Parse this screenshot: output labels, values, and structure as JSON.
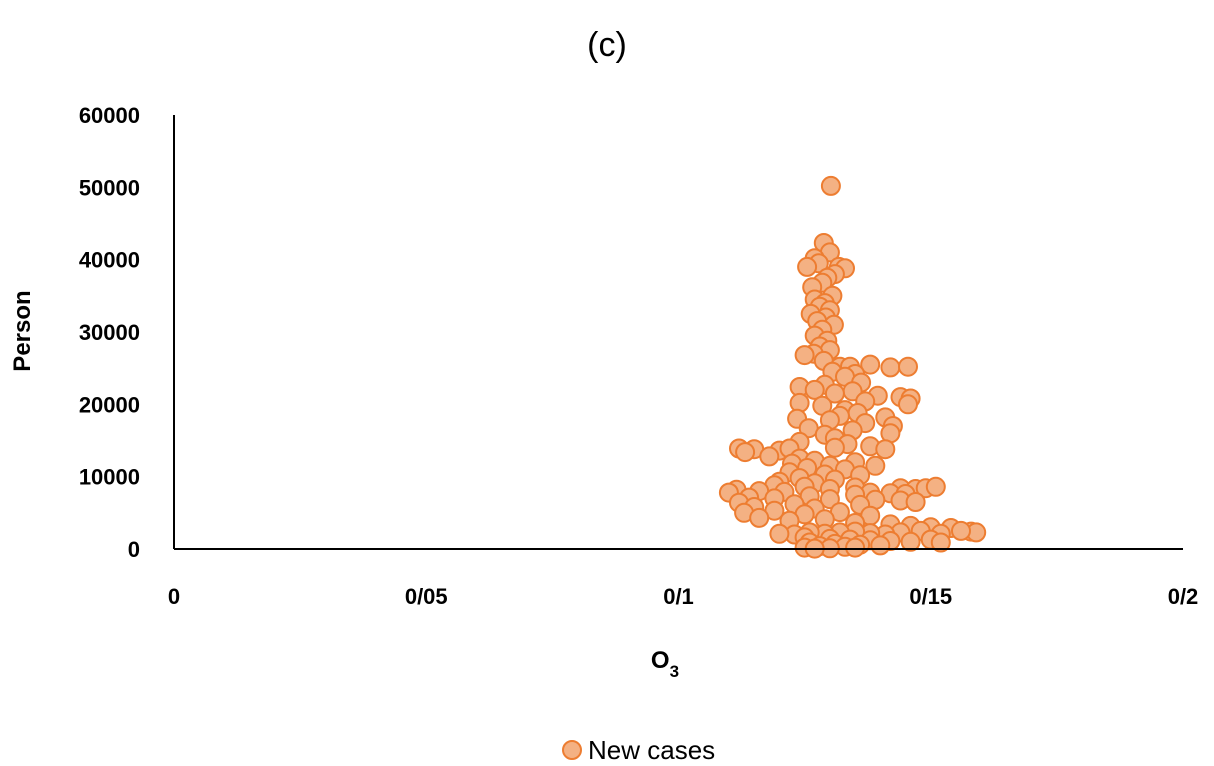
{
  "chart_data": {
    "type": "scatter",
    "title": "(c)",
    "xlabel": "O",
    "xlabel_sub": "3",
    "ylabel": "Person",
    "xlim": [
      0,
      0.2
    ],
    "ylim": [
      0,
      60000
    ],
    "x_ticks": [
      {
        "value": 0,
        "label": "0"
      },
      {
        "value": 0.05,
        "label": "0/05"
      },
      {
        "value": 0.1,
        "label": "0/1"
      },
      {
        "value": 0.15,
        "label": "0/15"
      },
      {
        "value": 0.2,
        "label": "0/2"
      }
    ],
    "y_ticks": [
      {
        "value": 0,
        "label": "0"
      },
      {
        "value": 10000,
        "label": "10000"
      },
      {
        "value": 20000,
        "label": "20000"
      },
      {
        "value": 30000,
        "label": "30000"
      },
      {
        "value": 40000,
        "label": "40000"
      },
      {
        "value": 50000,
        "label": "50000"
      },
      {
        "value": 60000,
        "label": "60000"
      }
    ],
    "grid": false,
    "legend_position": "bottom",
    "series": [
      {
        "name": "New cases",
        "marker_fill": "#F4B183",
        "marker_stroke": "#ED7D31",
        "points": [
          [
            0.1302,
            50200
          ],
          [
            0.1288,
            42300
          ],
          [
            0.13,
            41000
          ],
          [
            0.127,
            40200
          ],
          [
            0.1278,
            39500
          ],
          [
            0.1255,
            39000
          ],
          [
            0.1318,
            39000
          ],
          [
            0.133,
            38800
          ],
          [
            0.131,
            38000
          ],
          [
            0.1295,
            37500
          ],
          [
            0.1285,
            36800
          ],
          [
            0.1265,
            36200
          ],
          [
            0.1305,
            35000
          ],
          [
            0.127,
            34500
          ],
          [
            0.129,
            34000
          ],
          [
            0.128,
            33500
          ],
          [
            0.13,
            33000
          ],
          [
            0.1262,
            32500
          ],
          [
            0.1292,
            32000
          ],
          [
            0.1275,
            31500
          ],
          [
            0.1308,
            31000
          ],
          [
            0.1285,
            30300
          ],
          [
            0.127,
            29500
          ],
          [
            0.1295,
            28800
          ],
          [
            0.128,
            28000
          ],
          [
            0.13,
            27500
          ],
          [
            0.1268,
            27000
          ],
          [
            0.125,
            26800
          ],
          [
            0.1288,
            26000
          ],
          [
            0.132,
            25200
          ],
          [
            0.134,
            25200
          ],
          [
            0.138,
            25500
          ],
          [
            0.142,
            25100
          ],
          [
            0.1455,
            25200
          ],
          [
            0.1305,
            24500
          ],
          [
            0.135,
            24200
          ],
          [
            0.133,
            23800
          ],
          [
            0.1362,
            23000
          ],
          [
            0.129,
            22700
          ],
          [
            0.124,
            22400
          ],
          [
            0.127,
            22000
          ],
          [
            0.1345,
            21800
          ],
          [
            0.131,
            21500
          ],
          [
            0.1395,
            21200
          ],
          [
            0.144,
            21000
          ],
          [
            0.146,
            20800
          ],
          [
            0.137,
            20400
          ],
          [
            0.1455,
            20000
          ],
          [
            0.124,
            20200
          ],
          [
            0.1285,
            19800
          ],
          [
            0.133,
            19200
          ],
          [
            0.1355,
            18800
          ],
          [
            0.132,
            18400
          ],
          [
            0.1235,
            18000
          ],
          [
            0.141,
            18200
          ],
          [
            0.13,
            17800
          ],
          [
            0.137,
            17400
          ],
          [
            0.1425,
            17000
          ],
          [
            0.1258,
            16700
          ],
          [
            0.1345,
            16400
          ],
          [
            0.142,
            16000
          ],
          [
            0.129,
            15800
          ],
          [
            0.131,
            15300
          ],
          [
            0.124,
            14800
          ],
          [
            0.1335,
            14500
          ],
          [
            0.138,
            14200
          ],
          [
            0.131,
            14000
          ],
          [
            0.141,
            13800
          ],
          [
            0.112,
            13900
          ],
          [
            0.115,
            13800
          ],
          [
            0.1132,
            13400
          ],
          [
            0.12,
            13600
          ],
          [
            0.122,
            13900
          ],
          [
            0.118,
            12800
          ],
          [
            0.124,
            12500
          ],
          [
            0.127,
            12200
          ],
          [
            0.135,
            12000
          ],
          [
            0.1225,
            11800
          ],
          [
            0.13,
            11500
          ],
          [
            0.139,
            11500
          ],
          [
            0.1255,
            11200
          ],
          [
            0.133,
            11000
          ],
          [
            0.122,
            10600
          ],
          [
            0.129,
            10300
          ],
          [
            0.136,
            10200
          ],
          [
            0.124,
            9800
          ],
          [
            0.131,
            9600
          ],
          [
            0.12,
            9300
          ],
          [
            0.127,
            9100
          ],
          [
            0.119,
            8800
          ],
          [
            0.125,
            8600
          ],
          [
            0.135,
            8500
          ],
          [
            0.144,
            8400
          ],
          [
            0.147,
            8300
          ],
          [
            0.149,
            8400
          ],
          [
            0.151,
            8600
          ],
          [
            0.13,
            8300
          ],
          [
            0.1115,
            8200
          ],
          [
            0.116,
            8000
          ],
          [
            0.121,
            7900
          ],
          [
            0.11,
            7800
          ],
          [
            0.138,
            7800
          ],
          [
            0.142,
            7700
          ],
          [
            0.145,
            7600
          ],
          [
            0.135,
            7500
          ],
          [
            0.126,
            7300
          ],
          [
            0.114,
            7100
          ],
          [
            0.119,
            7000
          ],
          [
            0.13,
            6900
          ],
          [
            0.139,
            6800
          ],
          [
            0.144,
            6700
          ],
          [
            0.147,
            6500
          ],
          [
            0.112,
            6400
          ],
          [
            0.123,
            6200
          ],
          [
            0.136,
            6100
          ],
          [
            0.115,
            5800
          ],
          [
            0.127,
            5600
          ],
          [
            0.119,
            5300
          ],
          [
            0.132,
            5100
          ],
          [
            0.113,
            5000
          ],
          [
            0.125,
            4800
          ],
          [
            0.138,
            4600
          ],
          [
            0.116,
            4300
          ],
          [
            0.129,
            4100
          ],
          [
            0.122,
            3900
          ],
          [
            0.135,
            3600
          ],
          [
            0.142,
            3400
          ],
          [
            0.146,
            3200
          ],
          [
            0.15,
            3000
          ],
          [
            0.154,
            2900
          ],
          [
            0.158,
            2400
          ],
          [
            0.159,
            2300
          ],
          [
            0.156,
            2500
          ],
          [
            0.152,
            2100
          ],
          [
            0.148,
            2500
          ],
          [
            0.144,
            2300
          ],
          [
            0.141,
            2000
          ],
          [
            0.138,
            2200
          ],
          [
            0.135,
            2400
          ],
          [
            0.132,
            2300
          ],
          [
            0.129,
            2100
          ],
          [
            0.126,
            2300
          ],
          [
            0.123,
            2000
          ],
          [
            0.12,
            2100
          ],
          [
            0.125,
            1600
          ],
          [
            0.13,
            1400
          ],
          [
            0.134,
            1300
          ],
          [
            0.138,
            1200
          ],
          [
            0.142,
            1100
          ],
          [
            0.146,
            1000
          ],
          [
            0.15,
            1300
          ],
          [
            0.152,
            900
          ],
          [
            0.126,
            900
          ],
          [
            0.131,
            700
          ],
          [
            0.136,
            600
          ],
          [
            0.128,
            400
          ],
          [
            0.133,
            300
          ],
          [
            0.125,
            200
          ],
          [
            0.14,
            500
          ],
          [
            0.13,
            100
          ],
          [
            0.135,
            200
          ],
          [
            0.127,
            50
          ]
        ]
      }
    ]
  }
}
